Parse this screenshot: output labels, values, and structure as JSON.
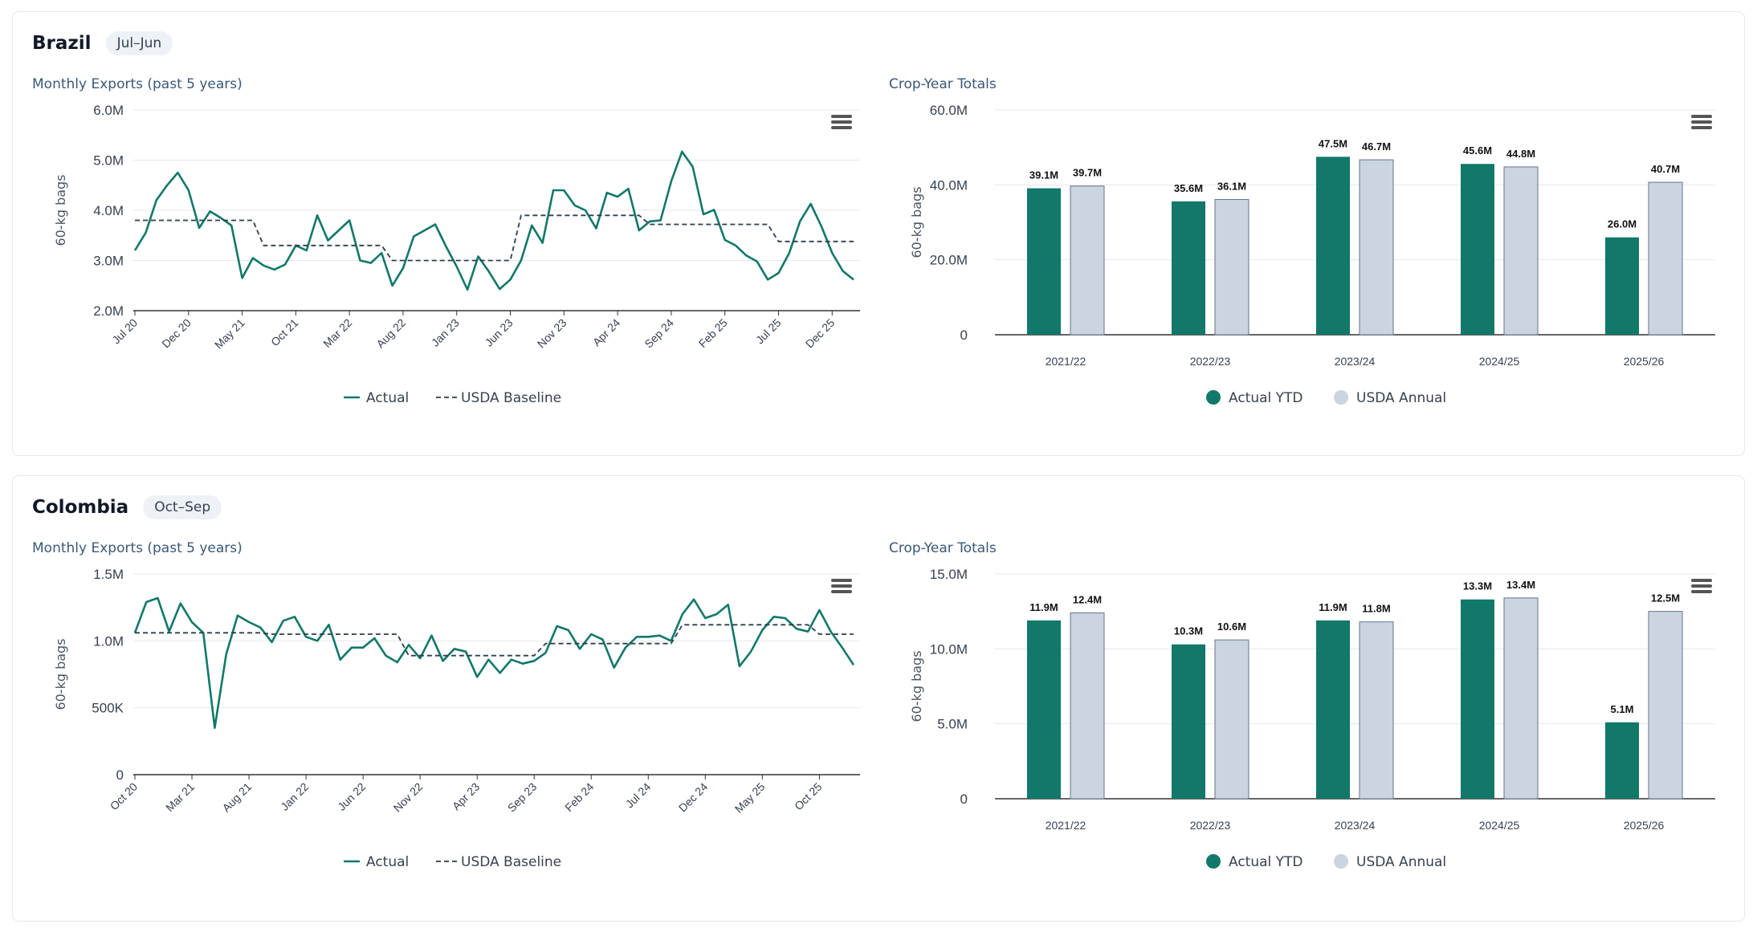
{
  "colors": {
    "actual": "#11786a",
    "baseline": "#2f3d4f",
    "usda_bar": "#cbd5e1",
    "usda_bar_stroke": "#64748b",
    "grid": "#e5e7eb"
  },
  "icons": {
    "menu": "hamburger-menu-icon"
  },
  "panels": [
    {
      "country": "Brazil",
      "season": "Jul–Jun",
      "line_title": "Monthly Exports (past 5 years)",
      "bar_title": "Crop-Year Totals",
      "ylabel": "60-kg bags",
      "legend": {
        "actual": "Actual",
        "baseline": "USDA Baseline",
        "actual_ytd": "Actual YTD",
        "usda_annual": "USDA Annual"
      }
    },
    {
      "country": "Colombia",
      "season": "Oct–Sep",
      "line_title": "Monthly Exports (past 5 years)",
      "bar_title": "Crop-Year Totals",
      "ylabel": "60-kg bags",
      "legend": {
        "actual": "Actual",
        "baseline": "USDA Baseline",
        "actual_ytd": "Actual YTD",
        "usda_annual": "USDA Annual"
      }
    }
  ],
  "chart_data": [
    {
      "type": "line",
      "title": "Monthly Exports (past 5 years)",
      "ylabel": "60-kg bags",
      "ylim": [
        2000000,
        6000000
      ],
      "yticks": [
        2000000,
        3000000,
        4000000,
        5000000,
        6000000
      ],
      "ytick_labels": [
        "2.0M",
        "3.0M",
        "4.0M",
        "5.0M",
        "6.0M"
      ],
      "x_tick_labels": [
        "Jul 20",
        "Dec 20",
        "May 21",
        "Oct 21",
        "Mar 22",
        "Aug 22",
        "Jan 23",
        "Jun 23",
        "Nov 23",
        "Apr 24",
        "Sep 24",
        "Feb 25",
        "Jul 25",
        "Dec 25"
      ],
      "x_tick_step": 5,
      "series": [
        {
          "name": "Actual",
          "values": [
            3200000,
            3550000,
            4200000,
            4500000,
            4750000,
            4400000,
            3650000,
            3980000,
            3850000,
            3700000,
            2650000,
            3050000,
            2900000,
            2820000,
            2920000,
            3300000,
            3200000,
            3900000,
            3400000,
            3600000,
            3800000,
            3000000,
            2950000,
            3150000,
            2500000,
            2850000,
            3480000,
            3600000,
            3720000,
            3280000,
            2880000,
            2420000,
            3080000,
            2780000,
            2430000,
            2620000,
            3000000,
            3700000,
            3350000,
            4400000,
            4400000,
            4100000,
            4000000,
            3640000,
            4350000,
            4270000,
            4430000,
            3600000,
            3780000,
            3800000,
            4580000,
            5170000,
            4870000,
            3920000,
            4010000,
            3410000,
            3300000,
            3100000,
            2980000,
            2620000,
            2750000,
            3150000,
            3780000,
            4130000,
            3680000,
            3150000,
            2790000,
            2620000
          ]
        },
        {
          "name": "USDA Baseline",
          "dashed": true,
          "values": [
            3800000,
            3800000,
            3800000,
            3800000,
            3800000,
            3800000,
            3800000,
            3800000,
            3800000,
            3800000,
            3800000,
            3800000,
            3300000,
            3300000,
            3300000,
            3300000,
            3300000,
            3300000,
            3300000,
            3300000,
            3300000,
            3300000,
            3300000,
            3300000,
            3000000,
            3000000,
            3000000,
            3000000,
            3000000,
            3000000,
            3000000,
            3000000,
            3000000,
            3000000,
            3000000,
            3000000,
            3900000,
            3900000,
            3900000,
            3900000,
            3900000,
            3900000,
            3900000,
            3900000,
            3900000,
            3900000,
            3900000,
            3900000,
            3720000,
            3720000,
            3720000,
            3720000,
            3720000,
            3720000,
            3720000,
            3720000,
            3720000,
            3720000,
            3720000,
            3720000,
            3380000,
            3380000,
            3380000,
            3380000,
            3380000,
            3380000,
            3380000,
            3380000
          ]
        }
      ]
    },
    {
      "type": "bar",
      "title": "Crop-Year Totals",
      "ylabel": "60-kg bags",
      "ylim": [
        0,
        60000000
      ],
      "yticks": [
        0,
        20000000,
        40000000,
        60000000
      ],
      "ytick_labels": [
        "0",
        "20.0M",
        "40.0M",
        "60.0M"
      ],
      "categories": [
        "2021/22",
        "2022/23",
        "2023/24",
        "2024/25",
        "2025/26"
      ],
      "series": [
        {
          "name": "Actual YTD",
          "values": [
            39100000,
            35600000,
            47500000,
            45600000,
            26000000
          ],
          "labels": [
            "39.1M",
            "35.6M",
            "47.5M",
            "45.6M",
            "26.0M"
          ]
        },
        {
          "name": "USDA Annual",
          "values": [
            39700000,
            36100000,
            46700000,
            44800000,
            40700000
          ],
          "labels": [
            "39.7M",
            "36.1M",
            "46.7M",
            "44.8M",
            "40.7M"
          ]
        }
      ]
    },
    {
      "type": "line",
      "title": "Monthly Exports (past 5 years)",
      "ylabel": "60-kg bags",
      "ylim": [
        0,
        1500000
      ],
      "yticks": [
        0,
        500000,
        1000000,
        1500000
      ],
      "ytick_labels": [
        "0",
        "500K",
        "1.0M",
        "1.5M"
      ],
      "x_tick_labels": [
        "Oct 20",
        "Mar 21",
        "Aug 21",
        "Jan 22",
        "Jun 22",
        "Nov 22",
        "Apr 23",
        "Sep 23",
        "Feb 24",
        "Jul 24",
        "Dec 24",
        "May 25",
        "Oct 25"
      ],
      "x_tick_step": 5,
      "series": [
        {
          "name": "Actual",
          "values": [
            1060000,
            1290000,
            1320000,
            1070000,
            1280000,
            1140000,
            1060000,
            350000,
            900000,
            1190000,
            1140000,
            1100000,
            990000,
            1150000,
            1180000,
            1030000,
            1000000,
            1120000,
            860000,
            950000,
            950000,
            1020000,
            890000,
            840000,
            970000,
            870000,
            1040000,
            850000,
            940000,
            920000,
            730000,
            860000,
            760000,
            860000,
            830000,
            850000,
            910000,
            1110000,
            1080000,
            940000,
            1050000,
            1010000,
            800000,
            950000,
            1030000,
            1030000,
            1040000,
            1000000,
            1200000,
            1310000,
            1170000,
            1200000,
            1270000,
            810000,
            920000,
            1080000,
            1180000,
            1170000,
            1090000,
            1070000,
            1230000,
            1070000,
            950000,
            820000
          ]
        },
        {
          "name": "USDA Baseline",
          "dashed": true,
          "values": [
            1060000,
            1060000,
            1060000,
            1060000,
            1060000,
            1060000,
            1060000,
            1060000,
            1060000,
            1060000,
            1060000,
            1060000,
            1050000,
            1050000,
            1050000,
            1050000,
            1050000,
            1050000,
            1050000,
            1050000,
            1050000,
            1050000,
            1050000,
            1050000,
            890000,
            890000,
            890000,
            890000,
            890000,
            890000,
            890000,
            890000,
            890000,
            890000,
            890000,
            890000,
            980000,
            980000,
            980000,
            980000,
            980000,
            980000,
            980000,
            980000,
            980000,
            980000,
            980000,
            980000,
            1120000,
            1120000,
            1120000,
            1120000,
            1120000,
            1120000,
            1120000,
            1120000,
            1120000,
            1120000,
            1120000,
            1120000,
            1050000,
            1050000,
            1050000,
            1050000
          ]
        }
      ]
    },
    {
      "type": "bar",
      "title": "Crop-Year Totals",
      "ylabel": "60-kg bags",
      "ylim": [
        0,
        15000000
      ],
      "yticks": [
        0,
        5000000,
        10000000,
        15000000
      ],
      "ytick_labels": [
        "0",
        "5.0M",
        "10.0M",
        "15.0M"
      ],
      "categories": [
        "2021/22",
        "2022/23",
        "2023/24",
        "2024/25",
        "2025/26"
      ],
      "series": [
        {
          "name": "Actual YTD",
          "values": [
            11900000,
            10300000,
            11900000,
            13300000,
            5100000
          ],
          "labels": [
            "11.9M",
            "10.3M",
            "11.9M",
            "13.3M",
            "5.1M"
          ]
        },
        {
          "name": "USDA Annual",
          "values": [
            12400000,
            10600000,
            11800000,
            13400000,
            12500000
          ],
          "labels": [
            "12.4M",
            "10.6M",
            "11.8M",
            "13.4M",
            "12.5M"
          ]
        }
      ]
    }
  ]
}
